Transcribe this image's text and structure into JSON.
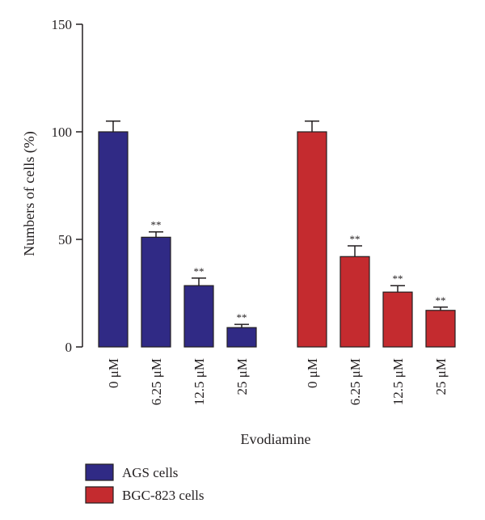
{
  "chart_data": {
    "type": "bar",
    "xlabel": "Evodiamine",
    "ylabel": "Numbers of cells (%)",
    "ylim": [
      0,
      150
    ],
    "yticks": [
      0,
      50,
      100,
      150
    ],
    "grid": false,
    "legend_position": "bottom-left",
    "groups": [
      {
        "name": "AGS cells",
        "color": "#302a85",
        "categories": [
          "0 μM",
          "6.25 μM",
          "12.5 μM",
          "25 μM"
        ],
        "values": [
          100,
          51,
          28.5,
          9
        ],
        "errors": [
          5,
          2.5,
          3.5,
          1.5
        ],
        "annotations": [
          "",
          "**",
          "**",
          "**"
        ]
      },
      {
        "name": "BGC-823 cells",
        "color": "#c42b2f",
        "categories": [
          "0 μM",
          "6.25 μM",
          "12.5 μM",
          "25 μM"
        ],
        "values": [
          100,
          42,
          25.5,
          17
        ],
        "errors": [
          5,
          5,
          3,
          1.5
        ],
        "annotations": [
          "",
          "**",
          "**",
          "**"
        ]
      }
    ]
  }
}
